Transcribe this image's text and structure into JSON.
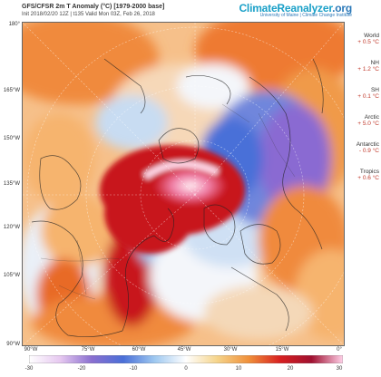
{
  "header": {
    "title": "GFS/CFSR 2m T Anomaly (°C) [1979-2000 base]",
    "subtitle": "Init 2018/02/20 12Z | t135 Valid Mon 03Z, Feb 26, 2018",
    "brand_name_part1": "ClimateReanalyzer",
    "brand_name_part2": ".org",
    "brand_sub": "University of Maine | Climate Change Institute"
  },
  "axes": {
    "y_labels": [
      "180°",
      "165°W",
      "150°W",
      "135°W",
      "120°W",
      "105°W",
      "90°W"
    ],
    "x_labels": [
      "90°W",
      "75°W",
      "60°W",
      "45°W",
      "30°W",
      "15°W",
      "0°"
    ]
  },
  "stats": [
    {
      "name": "World",
      "value": "+ 0.5 °C"
    },
    {
      "name": "NH",
      "value": "+ 1.2 °C"
    },
    {
      "name": "SH",
      "value": "+ 0.1 °C"
    },
    {
      "name": "Arctic",
      "value": "+ 5.0 °C"
    },
    {
      "name": "Antarctic",
      "value": "- 0.9 °C"
    },
    {
      "name": "Tropics",
      "value": "+ 0.6 °C"
    }
  ],
  "colorbar": {
    "labels": [
      "-30",
      "-20",
      "-10",
      "0",
      "10",
      "20",
      "30"
    ],
    "colors": [
      "#ffffff",
      "#e6c8f0",
      "#8a6fd0",
      "#4a6fd8",
      "#9ec8f0",
      "#ffffff",
      "#f5d48a",
      "#f0903a",
      "#d82020",
      "#a01030",
      "#ffd0e8"
    ]
  },
  "colors": {
    "warm_strong": "#c8141e",
    "warm": "#e86a28",
    "mild_warm": "#f6b46e",
    "neutral": "#f4f6fa",
    "cool": "#9cc4ee",
    "cold": "#3c66c8",
    "very_cold": "#8a6ad2"
  }
}
